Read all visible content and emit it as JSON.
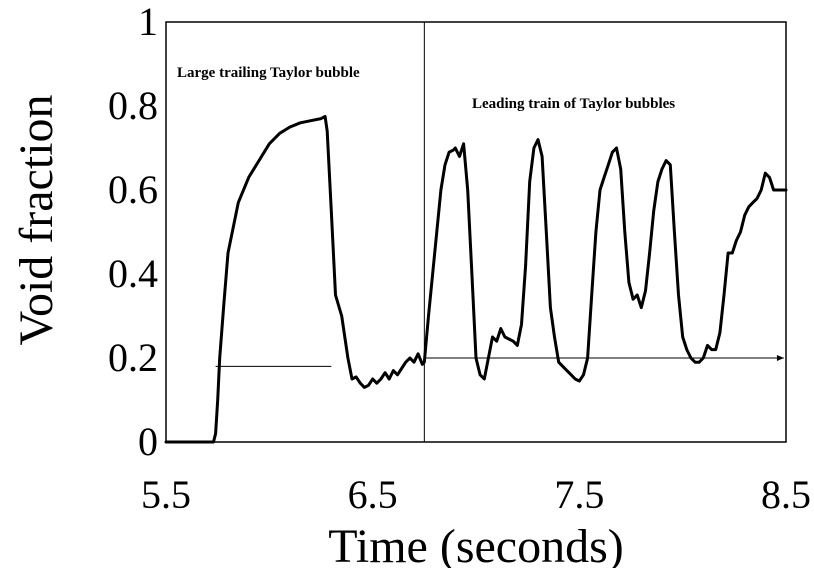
{
  "chart_data": {
    "type": "line",
    "title": "",
    "xlabel": "Time (seconds)",
    "ylabel": "Void fraction",
    "xlim": [
      5.5,
      8.5
    ],
    "ylim": [
      0,
      1
    ],
    "x_ticks": [
      5.5,
      6.5,
      7.5,
      8.5
    ],
    "x_tick_labels": [
      "5.5",
      "6.5",
      "7.5",
      "8.5"
    ],
    "y_ticks": [
      0,
      0.2,
      0.4,
      0.6,
      0.8,
      1
    ],
    "y_tick_labels": [
      "0",
      "0.2",
      "0.4",
      "0.6",
      "0.8",
      "1"
    ],
    "grid": false,
    "annotations": [
      {
        "text": "Large trailing Taylor bubble"
      },
      {
        "text": "Leading train of Taylor bubbles"
      }
    ],
    "divider_x": 6.75,
    "reference_lines": [
      {
        "x_start": 5.74,
        "x_end": 6.3,
        "y": 0.18
      },
      {
        "x_start": 6.75,
        "x_end": 8.49,
        "y": 0.2,
        "arrow": true
      }
    ],
    "series": [
      {
        "x": [
          5.5,
          5.6,
          5.7,
          5.73,
          5.74,
          5.75,
          5.76,
          5.78,
          5.8,
          5.85,
          5.9,
          5.95,
          6.0,
          6.05,
          6.1,
          6.15,
          6.2,
          6.25,
          6.27,
          6.28,
          6.3,
          6.32,
          6.35,
          6.38,
          6.4,
          6.42,
          6.44,
          6.46,
          6.48,
          6.5,
          6.52,
          6.54,
          6.56,
          6.58,
          6.6,
          6.62,
          6.64,
          6.66,
          6.68,
          6.7,
          6.72,
          6.74,
          6.75,
          6.77,
          6.8,
          6.83,
          6.85,
          6.87,
          6.89,
          6.9,
          6.92,
          6.94,
          6.96,
          6.98,
          7.0,
          7.02,
          7.04,
          7.06,
          7.08,
          7.1,
          7.12,
          7.14,
          7.16,
          7.18,
          7.2,
          7.22,
          7.24,
          7.26,
          7.28,
          7.3,
          7.32,
          7.34,
          7.36,
          7.38,
          7.4,
          7.42,
          7.44,
          7.46,
          7.48,
          7.5,
          7.52,
          7.54,
          7.56,
          7.58,
          7.6,
          7.62,
          7.64,
          7.66,
          7.68,
          7.7,
          7.72,
          7.74,
          7.76,
          7.78,
          7.8,
          7.82,
          7.84,
          7.86,
          7.88,
          7.9,
          7.92,
          7.94,
          7.96,
          7.98,
          8.0,
          8.02,
          8.04,
          8.06,
          8.08,
          8.1,
          8.12,
          8.14,
          8.16,
          8.18,
          8.2,
          8.22,
          8.24,
          8.26,
          8.28,
          8.3,
          8.32,
          8.34,
          8.36,
          8.38,
          8.4,
          8.42,
          8.44,
          8.46,
          8.48,
          8.49,
          8.5
        ],
        "y": [
          0,
          0,
          0,
          0,
          0.02,
          0.1,
          0.2,
          0.33,
          0.45,
          0.57,
          0.63,
          0.67,
          0.71,
          0.735,
          0.75,
          0.76,
          0.765,
          0.77,
          0.775,
          0.74,
          0.55,
          0.35,
          0.3,
          0.2,
          0.15,
          0.155,
          0.14,
          0.13,
          0.135,
          0.15,
          0.14,
          0.15,
          0.165,
          0.15,
          0.17,
          0.16,
          0.175,
          0.19,
          0.2,
          0.19,
          0.21,
          0.185,
          0.19,
          0.3,
          0.45,
          0.6,
          0.66,
          0.69,
          0.695,
          0.7,
          0.68,
          0.71,
          0.6,
          0.4,
          0.2,
          0.16,
          0.15,
          0.2,
          0.25,
          0.24,
          0.27,
          0.25,
          0.245,
          0.24,
          0.23,
          0.28,
          0.42,
          0.62,
          0.7,
          0.72,
          0.68,
          0.5,
          0.32,
          0.25,
          0.19,
          0.18,
          0.17,
          0.16,
          0.15,
          0.145,
          0.16,
          0.2,
          0.35,
          0.5,
          0.6,
          0.63,
          0.66,
          0.69,
          0.7,
          0.65,
          0.5,
          0.38,
          0.34,
          0.35,
          0.32,
          0.36,
          0.45,
          0.55,
          0.62,
          0.65,
          0.67,
          0.66,
          0.5,
          0.35,
          0.25,
          0.22,
          0.2,
          0.19,
          0.19,
          0.2,
          0.23,
          0.22,
          0.22,
          0.26,
          0.35,
          0.45,
          0.45,
          0.48,
          0.5,
          0.54,
          0.56,
          0.57,
          0.58,
          0.6,
          0.64,
          0.63,
          0.6,
          0.6,
          0.6,
          0.6,
          0.6
        ]
      }
    ]
  }
}
